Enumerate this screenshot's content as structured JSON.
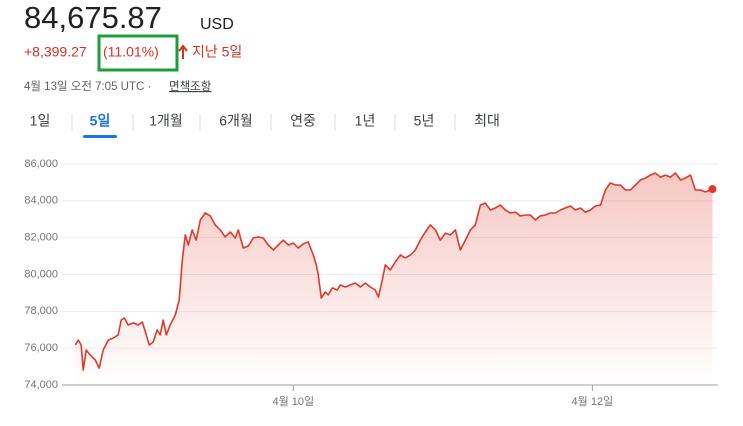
{
  "header": {
    "price": "84,675.87",
    "currency": "USD",
    "change": "+8,399.27",
    "change_percent": "(11.01%)",
    "period": "지난 5일",
    "timestamp": "4월 13일 오전 7:05 UTC ·",
    "disclaimer": "면책조항"
  },
  "tabs": [
    "1일",
    "5일",
    "1개월",
    "6개월",
    "연중",
    "1년",
    "5년",
    "최대"
  ],
  "selected_tab": 1,
  "chart_data": {
    "type": "line",
    "color": "#e0392b",
    "grid": true,
    "xlim": [
      8.44,
      12.84
    ],
    "xticks": [
      {
        "value": 10,
        "label": "4월 10일"
      },
      {
        "value": 12,
        "label": "4월 12일"
      }
    ],
    "ylim": [
      74000,
      86000
    ],
    "yticks": [
      {
        "value": 74000,
        "label": "74,000"
      },
      {
        "value": 76000,
        "label": "76,000"
      },
      {
        "value": 78000,
        "label": "78,000"
      },
      {
        "value": 80000,
        "label": "80,000"
      },
      {
        "value": 82000,
        "label": "82,000"
      },
      {
        "value": 84000,
        "label": "84,000"
      },
      {
        "value": 86000,
        "label": "86,000"
      }
    ],
    "x": [
      8.542,
      8.562,
      8.582,
      8.595,
      8.615,
      8.642,
      8.676,
      8.702,
      8.729,
      8.763,
      8.796,
      8.829,
      8.849,
      8.87,
      8.896,
      8.93,
      8.963,
      8.99,
      9.017,
      9.037,
      9.064,
      9.09,
      9.11,
      9.13,
      9.151,
      9.177,
      9.211,
      9.237,
      9.258,
      9.278,
      9.298,
      9.324,
      9.351,
      9.378,
      9.411,
      9.445,
      9.478,
      9.512,
      9.545,
      9.579,
      9.612,
      9.632,
      9.666,
      9.699,
      9.732,
      9.766,
      9.799,
      9.833,
      9.866,
      9.9,
      9.933,
      9.967,
      10.0,
      10.033,
      10.067,
      10.1,
      10.134,
      10.154,
      10.167,
      10.187,
      10.214,
      10.234,
      10.261,
      10.294,
      10.314,
      10.348,
      10.381,
      10.415,
      10.448,
      10.482,
      10.515,
      10.548,
      10.569,
      10.595,
      10.615,
      10.649,
      10.682,
      10.716,
      10.749,
      10.783,
      10.816,
      10.849,
      10.883,
      10.916,
      10.95,
      10.983,
      11.017,
      11.05,
      11.084,
      11.117,
      11.151,
      11.184,
      11.217,
      11.251,
      11.284,
      11.318,
      11.351,
      11.385,
      11.418,
      11.452,
      11.485,
      11.518,
      11.552,
      11.585,
      11.619,
      11.652,
      11.686,
      11.719,
      11.753,
      11.786,
      11.819,
      11.853,
      11.886,
      11.92,
      11.953,
      11.987,
      12.02,
      12.054,
      12.087,
      12.12,
      12.154,
      12.187,
      12.221,
      12.254,
      12.288,
      12.321,
      12.355,
      12.388,
      12.421,
      12.455,
      12.488,
      12.522,
      12.555,
      12.589,
      12.622,
      12.656,
      12.689,
      12.722,
      12.756,
      12.803
    ],
    "values": [
      76170,
      76440,
      76170,
      74810,
      75900,
      75630,
      75360,
      74920,
      75900,
      76440,
      76550,
      76720,
      77530,
      77640,
      77260,
      77370,
      77260,
      77420,
      76720,
      76170,
      76340,
      76990,
      76720,
      77530,
      76720,
      77260,
      77800,
      78620,
      80790,
      82150,
      81600,
      82420,
      81870,
      82960,
      83340,
      83180,
      82690,
      82420,
      82040,
      82310,
      81980,
      82420,
      81440,
      81550,
      81980,
      82040,
      81980,
      81600,
      81330,
      81600,
      81870,
      81600,
      81710,
      81440,
      81660,
      81770,
      81060,
      80520,
      79970,
      78720,
      79050,
      78890,
      79270,
      79160,
      79430,
      79320,
      79430,
      79540,
      79320,
      79540,
      79320,
      79160,
      78780,
      79700,
      80520,
      80250,
      80680,
      81060,
      80900,
      81060,
      81330,
      81870,
      82310,
      82690,
      82420,
      81870,
      82250,
      82150,
      82420,
      81330,
      81870,
      82420,
      82690,
      83770,
      83880,
      83500,
      83610,
      83770,
      83500,
      83340,
      83390,
      83180,
      83230,
      83230,
      82960,
      83180,
      83230,
      83340,
      83340,
      83500,
      83610,
      83720,
      83500,
      83610,
      83390,
      83500,
      83720,
      83770,
      84590,
      84970,
      84860,
      84860,
      84590,
      84590,
      84860,
      85130,
      85240,
      85400,
      85510,
      85290,
      85400,
      85290,
      85510,
      85130,
      85240,
      85400,
      84590,
      84590,
      84480,
      84640
    ]
  }
}
